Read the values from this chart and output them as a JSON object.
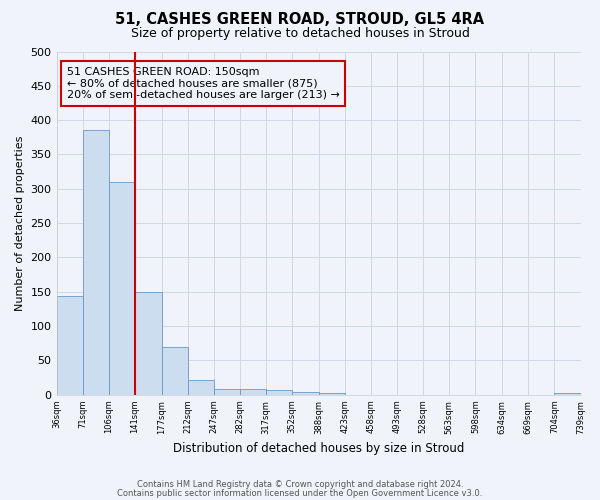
{
  "title": "51, CASHES GREEN ROAD, STROUD, GL5 4RA",
  "subtitle": "Size of property relative to detached houses in Stroud",
  "xlabel": "Distribution of detached houses by size in Stroud",
  "ylabel": "Number of detached properties",
  "bar_edges": [
    36,
    71,
    106,
    141,
    177,
    212,
    247,
    282,
    317,
    352,
    388,
    423,
    458,
    493,
    528,
    563,
    598,
    634,
    669,
    704,
    739
  ],
  "bar_heights": [
    144,
    385,
    310,
    150,
    70,
    22,
    9,
    8,
    7,
    4,
    3,
    0,
    0,
    0,
    0,
    0,
    0,
    0,
    0,
    3
  ],
  "tick_labels": [
    "36sqm",
    "71sqm",
    "106sqm",
    "141sqm",
    "177sqm",
    "212sqm",
    "247sqm",
    "282sqm",
    "317sqm",
    "352sqm",
    "388sqm",
    "423sqm",
    "458sqm",
    "493sqm",
    "528sqm",
    "563sqm",
    "598sqm",
    "634sqm",
    "669sqm",
    "704sqm",
    "739sqm"
  ],
  "bar_color": "#ccddf0",
  "bar_edge_color": "#6699cc",
  "vline_x": 141,
  "vline_color": "#cc0000",
  "annotation_lines": [
    "51 CASHES GREEN ROAD: 150sqm",
    "← 80% of detached houses are smaller (875)",
    "20% of semi-detached houses are larger (213) →"
  ],
  "ylim": [
    0,
    500
  ],
  "yticks": [
    0,
    50,
    100,
    150,
    200,
    250,
    300,
    350,
    400,
    450,
    500
  ],
  "footnote1": "Contains HM Land Registry data © Crown copyright and database right 2024.",
  "footnote2": "Contains public sector information licensed under the Open Government Licence v3.0.",
  "grid_color": "#d0d8e8",
  "background_color": "#f0f4fa"
}
